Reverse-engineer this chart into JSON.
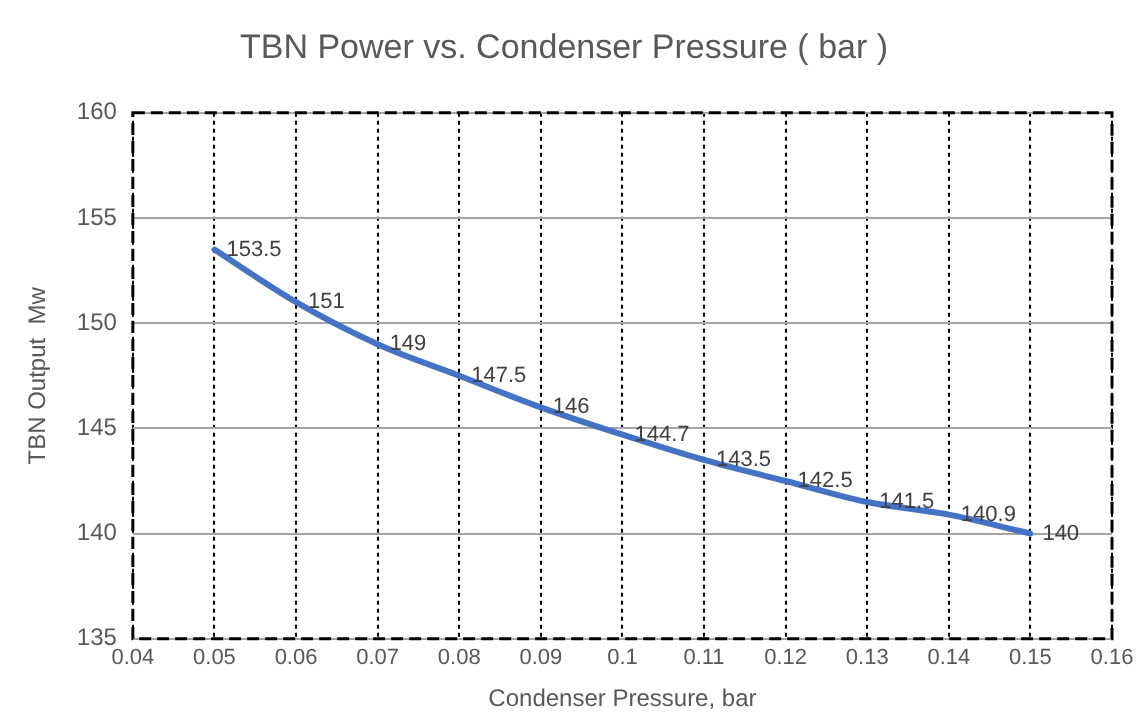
{
  "chart_data": {
    "type": "line",
    "title": "TBN Power vs. Condenser Pressure ( bar )",
    "xlabel": "Condenser Pressure, bar",
    "ylabel": "TBN Output  Mw",
    "x": [
      0.05,
      0.06,
      0.07,
      0.08,
      0.09,
      0.1,
      0.11,
      0.12,
      0.13,
      0.14,
      0.15
    ],
    "series": [
      {
        "color": "#4472c4",
        "values": [
          153.5,
          151,
          149,
          147.5,
          146,
          144.7,
          143.5,
          142.5,
          141.5,
          140.9,
          140
        ]
      }
    ],
    "xlim": [
      0.04,
      0.16
    ],
    "xticks": [
      0.04,
      0.05,
      0.06,
      0.07,
      0.08,
      0.09,
      0.1,
      0.11,
      0.12,
      0.13,
      0.14,
      0.15,
      0.16
    ],
    "ylim": [
      135,
      160
    ],
    "yticks": [
      135,
      140,
      145,
      150,
      155,
      160
    ],
    "grid": true,
    "legend": false,
    "marker": "none",
    "line_style": "solid",
    "data_labels": true
  }
}
